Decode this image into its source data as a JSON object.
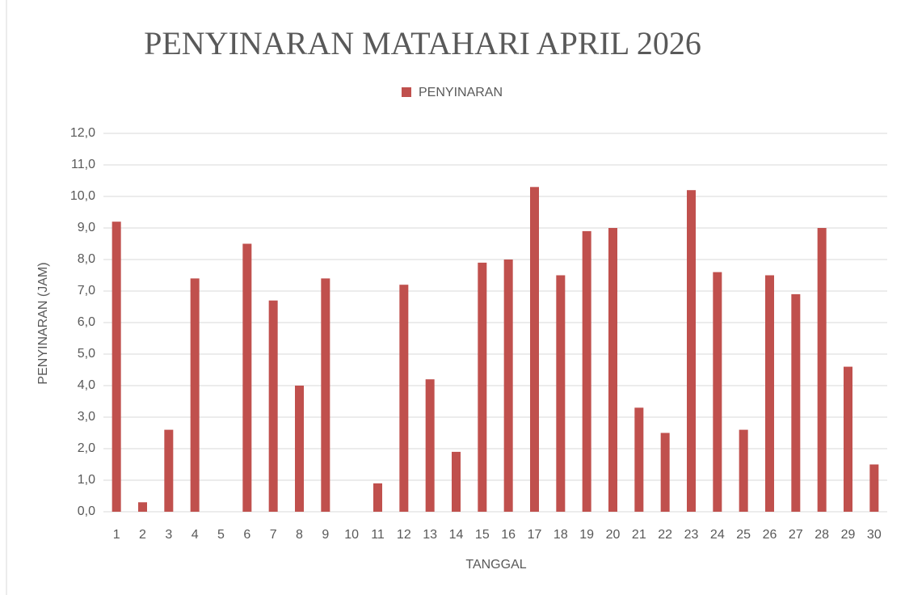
{
  "chart_data": {
    "type": "bar",
    "title": "PENYINARAN MATAHARI APRIL 2026",
    "x_label": "TANGGAL",
    "y_label": "PENYINARAN (JAM)",
    "categories": [
      "1",
      "2",
      "3",
      "4",
      "5",
      "6",
      "7",
      "8",
      "9",
      "10",
      "11",
      "12",
      "13",
      "14",
      "15",
      "16",
      "17",
      "18",
      "19",
      "20",
      "21",
      "22",
      "23",
      "24",
      "25",
      "26",
      "27",
      "28",
      "29",
      "30"
    ],
    "series": [
      {
        "name": "PENYINARAN",
        "color": "#c0504d",
        "values": [
          9.2,
          0.3,
          2.6,
          7.4,
          0,
          8.5,
          6.7,
          4.0,
          7.4,
          0,
          0.9,
          7.2,
          4.2,
          1.9,
          7.9,
          8.0,
          10.3,
          7.5,
          8.9,
          9.0,
          3.3,
          2.5,
          10.2,
          7.6,
          2.6,
          7.5,
          6.9,
          9.0,
          4.6,
          1.5
        ]
      }
    ],
    "ylim": [
      0,
      12
    ],
    "yticks": [
      {
        "value": 0,
        "label": "0,0"
      },
      {
        "value": 1,
        "label": "1,0"
      },
      {
        "value": 2,
        "label": "2,0"
      },
      {
        "value": 3,
        "label": "3,0"
      },
      {
        "value": 4,
        "label": "4,0"
      },
      {
        "value": 5,
        "label": "5,0"
      },
      {
        "value": 6,
        "label": "6,0"
      },
      {
        "value": 7,
        "label": "7,0"
      },
      {
        "value": 8,
        "label": "8,0"
      },
      {
        "value": 9,
        "label": "9,0"
      },
      {
        "value": 10,
        "label": "10,0"
      },
      {
        "value": 11,
        "label": "11,0"
      },
      {
        "value": 12,
        "label": "12,0"
      }
    ],
    "grid": true,
    "legend": "top"
  }
}
